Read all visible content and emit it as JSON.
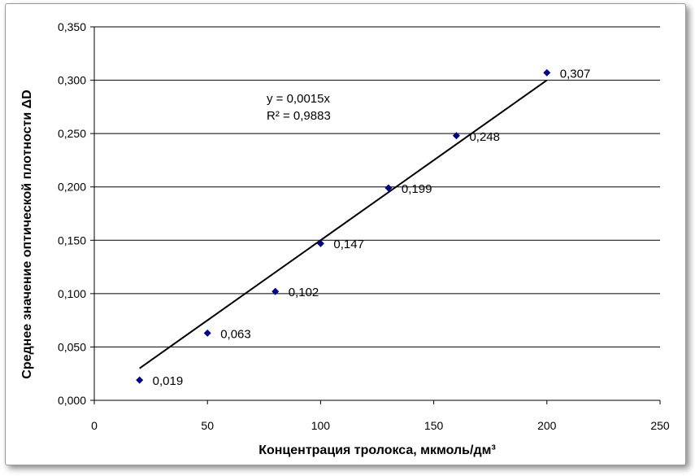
{
  "chart_data": {
    "type": "scatter",
    "xlabel": "Концентрация тролокса, мкмоль/дм³",
    "ylabel": "Среднее значение оптической плотности  ΔD",
    "xlim": [
      0,
      250
    ],
    "ylim": [
      0,
      0.35
    ],
    "x_ticks": [
      "0",
      "50",
      "100",
      "150",
      "200",
      "250"
    ],
    "y_ticks": [
      "0,000",
      "0,050",
      "0,100",
      "0,150",
      "0,200",
      "0,250",
      "0,300",
      "0,350"
    ],
    "grid": "horizontal",
    "series": [
      {
        "marker": "diamond",
        "color": "#00008B",
        "points": [
          {
            "x": 20,
            "y": 0.019,
            "label": "0,019"
          },
          {
            "x": 50,
            "y": 0.063,
            "label": "0,063"
          },
          {
            "x": 80,
            "y": 0.102,
            "label": "0,102"
          },
          {
            "x": 100,
            "y": 0.147,
            "label": "0,147"
          },
          {
            "x": 130,
            "y": 0.199,
            "label": "0,199"
          },
          {
            "x": 160,
            "y": 0.248,
            "label": "0,248"
          },
          {
            "x": 200,
            "y": 0.307,
            "label": "0,307"
          }
        ]
      }
    ],
    "trendline": {
      "x_from": 20,
      "x_to": 200,
      "slope": 0.0015,
      "equation": "y = 0,0015x",
      "r2": "R² = 0,9883",
      "color": "#000000"
    }
  }
}
